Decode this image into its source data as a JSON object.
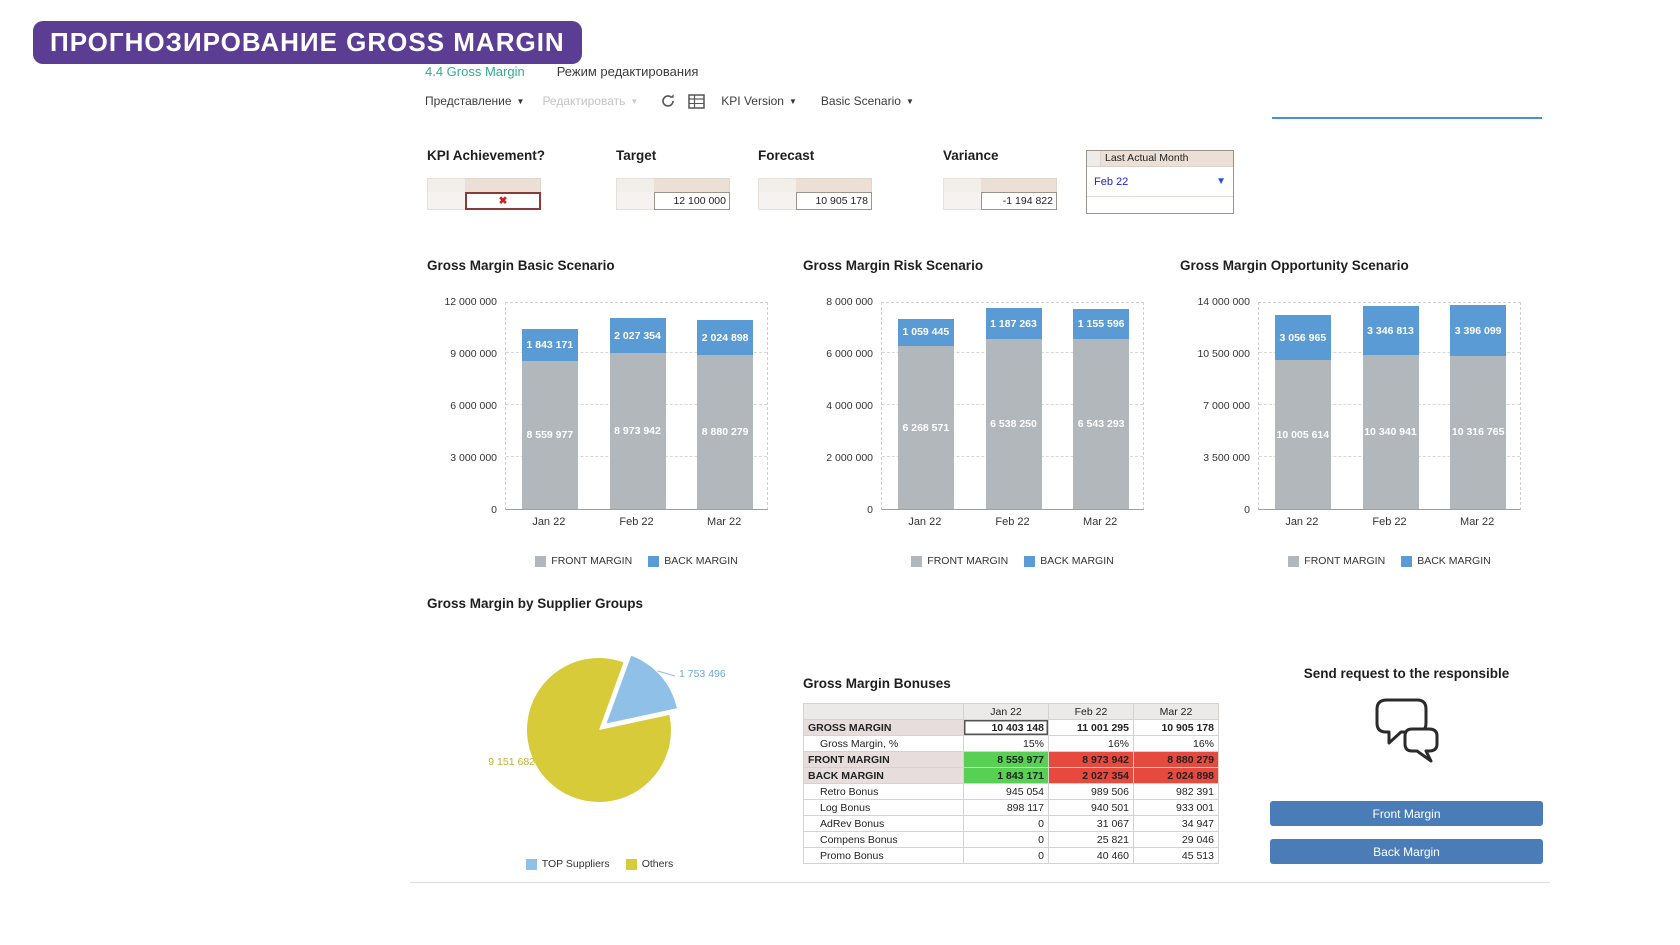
{
  "badge": {
    "text": "ПРОГНОЗИРОВАНИЕ GROSS MARGIN"
  },
  "tabs": {
    "active": "4.4 Gross Margin",
    "secondary": "Режим редактирования"
  },
  "toolbar": {
    "view": "Представление",
    "edit": "Редактировать",
    "kpi_version": "KPI Version",
    "scenario": "Basic Scenario"
  },
  "kpi": {
    "achievement": {
      "label": "KPI Achievement?",
      "value": "✖"
    },
    "target": {
      "label": "Target",
      "value": "12 100 000"
    },
    "forecast": {
      "label": "Forecast",
      "value": "10 905 178"
    },
    "variance": {
      "label": "Variance",
      "value": "-1 194 822"
    },
    "last_actual_month": {
      "label": "Last Actual Month",
      "value": "Feb 22"
    }
  },
  "colors": {
    "badge": "#5b3d94",
    "tab_active": "#2fae8f",
    "underline": "#4a90d9",
    "button": "#4a7db8",
    "front_margin": "#b2b7bc",
    "back_margin": "#5b9bd5",
    "good_cell": "#57d053",
    "bad_cell": "#e6493d"
  },
  "chart_data": [
    {
      "type": "bar",
      "stacked": true,
      "title": "Gross Margin Basic Scenario",
      "categories": [
        "Jan 22",
        "Feb 22",
        "Mar 22"
      ],
      "series": [
        {
          "name": "FRONT MARGIN",
          "color": "#b2b7bc",
          "values": [
            8559977,
            8973942,
            8880279
          ],
          "labels": [
            "8 559 977",
            "8 973 942",
            "8 880 279"
          ]
        },
        {
          "name": "BACK MARGIN",
          "color": "#5b9bd5",
          "values": [
            1843171,
            2027354,
            2024898
          ],
          "labels": [
            "1 843 171",
            "2 027 354",
            "2 024 898"
          ]
        }
      ],
      "ylim": [
        0,
        12000000
      ],
      "yticks": [
        "0",
        "3 000 000",
        "6 000 000",
        "9 000 000",
        "12 000 000"
      ],
      "grid": true,
      "legend_position": "bottom"
    },
    {
      "type": "bar",
      "stacked": true,
      "title": "Gross Margin Risk Scenario",
      "categories": [
        "Jan 22",
        "Feb 22",
        "Mar 22"
      ],
      "series": [
        {
          "name": "FRONT MARGIN",
          "color": "#b2b7bc",
          "values": [
            6268571,
            6538250,
            6543293
          ],
          "labels": [
            "6 268 571",
            "6 538 250",
            "6 543 293"
          ]
        },
        {
          "name": "BACK MARGIN",
          "color": "#5b9bd5",
          "values": [
            1059445,
            1187263,
            1155596
          ],
          "labels": [
            "1 059 445",
            "1 187 263",
            "1 155 596"
          ]
        }
      ],
      "ylim": [
        0,
        8000000
      ],
      "yticks": [
        "0",
        "2 000 000",
        "4 000 000",
        "6 000 000",
        "8 000 000"
      ],
      "grid": true,
      "legend_position": "bottom"
    },
    {
      "type": "bar",
      "stacked": true,
      "title": "Gross Margin Opportunity Scenario",
      "categories": [
        "Jan 22",
        "Feb 22",
        "Mar 22"
      ],
      "series": [
        {
          "name": "FRONT MARGIN",
          "color": "#b2b7bc",
          "values": [
            10005614,
            10340941,
            10316765
          ],
          "labels": [
            "10 005 614",
            "10 340 941",
            "10 316 765"
          ]
        },
        {
          "name": "BACK MARGIN",
          "color": "#5b9bd5",
          "values": [
            3056965,
            3346813,
            3396099
          ],
          "labels": [
            "3 056 965",
            "3 346 813",
            "3 396 099"
          ]
        }
      ],
      "ylim": [
        0,
        14000000
      ],
      "yticks": [
        "0",
        "3 500 000",
        "7 000 000",
        "10 500 000",
        "14 000 000"
      ],
      "grid": true,
      "legend_position": "bottom"
    },
    {
      "type": "pie",
      "title": "Gross Margin by Supplier Groups",
      "slices": [
        {
          "name": "TOP Suppliers",
          "value": 1753496,
          "label": "1 753 496",
          "color": "#8fc0e8"
        },
        {
          "name": "Others",
          "value": 9151682,
          "label": "9 151 682",
          "color": "#d8cb3a"
        }
      ],
      "legend_position": "bottom"
    }
  ],
  "bonuses_table": {
    "title": "Gross Margin Bonuses",
    "columns": [
      "",
      "Jan 22",
      "Feb 22",
      "Mar 22"
    ],
    "rows": [
      {
        "label": "GROSS MARGIN",
        "bold": true,
        "values": [
          "10 403 148",
          "11 001 295",
          "10 905 178"
        ],
        "cell_styles": [
          "selected",
          "",
          ""
        ]
      },
      {
        "label": "Gross Margin, %",
        "indent": true,
        "values": [
          "15%",
          "16%",
          "16%"
        ]
      },
      {
        "label": "FRONT MARGIN",
        "bold": true,
        "values": [
          "8 559 977",
          "8 973 942",
          "8 880 279"
        ],
        "cell_styles": [
          "green",
          "red",
          "red"
        ]
      },
      {
        "label": "BACK MARGIN",
        "bold": true,
        "values": [
          "1 843 171",
          "2 027 354",
          "2 024 898"
        ],
        "cell_styles": [
          "green",
          "red",
          "red"
        ]
      },
      {
        "label": "Retro Bonus",
        "indent": true,
        "values": [
          "945 054",
          "989 506",
          "982 391"
        ]
      },
      {
        "label": "Log Bonus",
        "indent": true,
        "values": [
          "898 117",
          "940 501",
          "933 001"
        ]
      },
      {
        "label": "AdRev Bonus",
        "indent": true,
        "values": [
          "0",
          "31 067",
          "34 947"
        ]
      },
      {
        "label": "Compens Bonus",
        "indent": true,
        "values": [
          "0",
          "25 821",
          "29 046"
        ]
      },
      {
        "label": "Promo Bonus",
        "indent": true,
        "values": [
          "0",
          "40 460",
          "45 513"
        ]
      }
    ]
  },
  "request_panel": {
    "title": "Send request to the responsible",
    "front_button": "Front Margin",
    "back_button": "Back Margin"
  }
}
